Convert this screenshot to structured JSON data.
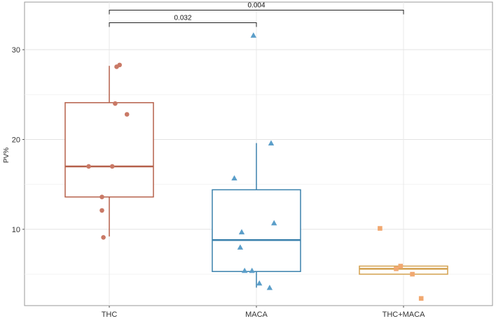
{
  "chart_data": {
    "type": "boxplot",
    "title": "",
    "xlabel": "",
    "ylabel": "PV%",
    "ylim": [
      1.5,
      35.3
    ],
    "y_ticks": [
      10,
      20,
      30
    ],
    "grid": true,
    "legend": "none",
    "categories": [
      "THC",
      "MACA",
      "THC+MACA"
    ],
    "groups": [
      {
        "name": "THC",
        "color": "#b5604a",
        "point_color": "#c97966",
        "marker": "circle",
        "box": {
          "min": 9.2,
          "q1": 13.6,
          "median": 17.0,
          "q3": 24.1,
          "max": 28.2
        },
        "points": [
          {
            "x": 0.96,
            "y": 9.1
          },
          {
            "x": 0.95,
            "y": 12.1
          },
          {
            "x": 0.95,
            "y": 13.6
          },
          {
            "x": 0.86,
            "y": 17.0
          },
          {
            "x": 1.02,
            "y": 17.0
          },
          {
            "x": 1.04,
            "y": 24.0
          },
          {
            "x": 1.12,
            "y": 22.8
          },
          {
            "x": 1.05,
            "y": 28.1
          },
          {
            "x": 1.07,
            "y": 28.3
          }
        ]
      },
      {
        "name": "MACA",
        "color": "#3a81ac",
        "point_color": "#5b9ec9",
        "marker": "triangle",
        "box": {
          "min": 3.5,
          "q1": 5.3,
          "median": 8.8,
          "q3": 14.4,
          "max": 19.6
        },
        "points": [
          {
            "x": 2.1,
            "y": 19.6
          },
          {
            "x": 1.85,
            "y": 15.7
          },
          {
            "x": 2.12,
            "y": 10.7
          },
          {
            "x": 1.9,
            "y": 9.7
          },
          {
            "x": 1.89,
            "y": 8.0
          },
          {
            "x": 1.92,
            "y": 5.4
          },
          {
            "x": 1.97,
            "y": 5.4
          },
          {
            "x": 2.02,
            "y": 4.0
          },
          {
            "x": 2.09,
            "y": 3.5
          },
          {
            "x": 1.98,
            "y": 31.6
          }
        ]
      },
      {
        "name": "THC+MACA",
        "color": "#d3a04e",
        "point_color": "#f1a870",
        "marker": "square",
        "box": {
          "min": 5.0,
          "q1": 5.0,
          "median": 5.6,
          "q3": 5.9,
          "max": 5.9
        },
        "points": [
          {
            "x": 2.84,
            "y": 10.1
          },
          {
            "x": 2.95,
            "y": 5.6
          },
          {
            "x": 2.98,
            "y": 5.9
          },
          {
            "x": 3.06,
            "y": 5.0
          },
          {
            "x": 3.12,
            "y": 2.3
          }
        ]
      }
    ],
    "comparisons": [
      {
        "from": "THC",
        "to": "MACA",
        "label": "0.032",
        "y": 33.0
      },
      {
        "from": "THC",
        "to": "THC+MACA",
        "label": "0.004",
        "y": 34.4
      }
    ]
  }
}
